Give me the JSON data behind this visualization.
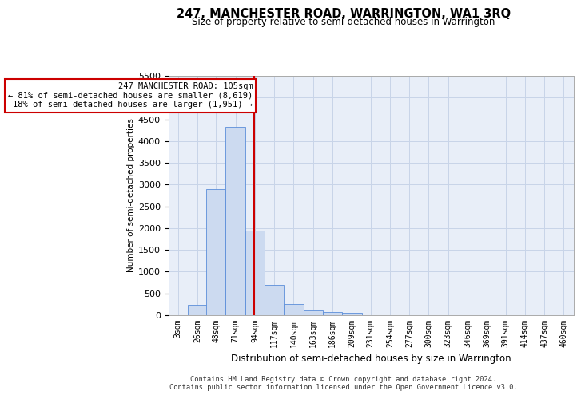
{
  "title": "247, MANCHESTER ROAD, WARRINGTON, WA1 3RQ",
  "subtitle": "Size of property relative to semi-detached houses in Warrington",
  "xlabel": "Distribution of semi-detached houses by size in Warrington",
  "ylabel": "Number of semi-detached properties",
  "annotation_line1": "247 MANCHESTER ROAD: 105sqm",
  "annotation_line2": "← 81% of semi-detached houses are smaller (8,619)",
  "annotation_line3": "18% of semi-detached houses are larger (1,951) →",
  "footer1": "Contains HM Land Registry data © Crown copyright and database right 2024.",
  "footer2": "Contains public sector information licensed under the Open Government Licence v3.0.",
  "property_size": 105,
  "categories": [
    "3sqm",
    "26sqm",
    "48sqm",
    "71sqm",
    "94sqm",
    "117sqm",
    "140sqm",
    "163sqm",
    "186sqm",
    "209sqm",
    "231sqm",
    "254sqm",
    "277sqm",
    "300sqm",
    "323sqm",
    "346sqm",
    "369sqm",
    "391sqm",
    "414sqm",
    "437sqm",
    "460sqm"
  ],
  "bin_edges": [
    3,
    26,
    48,
    71,
    94,
    117,
    140,
    163,
    186,
    209,
    231,
    254,
    277,
    300,
    323,
    346,
    369,
    391,
    414,
    437,
    460
  ],
  "bin_width": 23,
  "values": [
    0,
    230,
    2900,
    4320,
    1950,
    700,
    250,
    110,
    75,
    50,
    0,
    0,
    0,
    0,
    0,
    0,
    0,
    0,
    0,
    0,
    0
  ],
  "bar_color": "#ccdaf0",
  "bar_edge_color": "#5b8dd9",
  "vline_color": "#cc0000",
  "vline_x": 105,
  "annotation_box_edge_color": "#cc0000",
  "grid_color": "#c8d4e8",
  "plot_bg_color": "#e8eef8",
  "ylim": [
    0,
    5500
  ],
  "yticks": [
    0,
    500,
    1000,
    1500,
    2000,
    2500,
    3000,
    3500,
    4000,
    4500,
    5000,
    5500
  ]
}
